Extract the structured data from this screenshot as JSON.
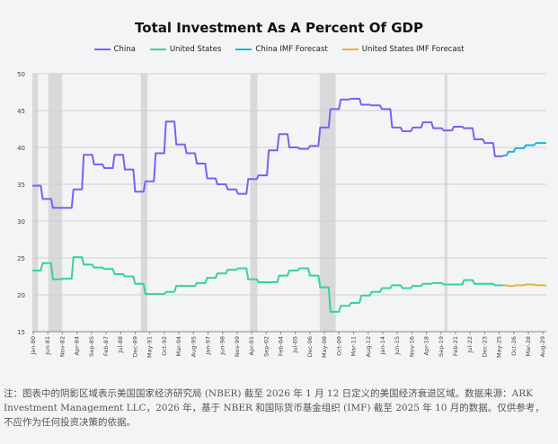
{
  "chart_data": {
    "type": "line",
    "title": "Total Investment As A Percent Of GDP",
    "ylim": [
      15,
      50
    ],
    "yticks": [
      15,
      20,
      25,
      30,
      35,
      40,
      45,
      50
    ],
    "xlim": [
      1980,
      2030
    ],
    "grid": true,
    "legend_position": "top",
    "xtick_labels": [
      "Jan-80",
      "Jun-81",
      "Nov-82",
      "Apr-84",
      "Sep-85",
      "Feb-87",
      "Jul-88",
      "Dec-89",
      "May-91",
      "Oct-92",
      "Mar-94",
      "Aug-95",
      "Jan-97",
      "Jun-98",
      "Nov-99",
      "Apr-01",
      "Sep-02",
      "Feb-04",
      "Jul-05",
      "Dec-06",
      "May-08",
      "Oct-09",
      "Mar-11",
      "Aug-12",
      "Jan-14",
      "Jun-15",
      "Nov-16",
      "Apr-18",
      "Sep-19",
      "Feb-21",
      "Jul-22",
      "Dec-23",
      "May-25",
      "Oct-26",
      "Mar-28",
      "Aug-29"
    ],
    "recessions": [
      [
        1980.0,
        1980.55
      ],
      [
        1981.55,
        1982.9
      ],
      [
        1990.55,
        1991.2
      ],
      [
        2001.2,
        2001.9
      ],
      [
        2007.95,
        2009.5
      ],
      [
        2020.1,
        2020.35
      ]
    ],
    "series": [
      {
        "name": "China",
        "color": "#7b61f0",
        "x": [
          1980,
          1981,
          1982,
          1983,
          1984,
          1985,
          1986,
          1987,
          1988,
          1989,
          1990,
          1991,
          1992,
          1993,
          1994,
          1995,
          1996,
          1997,
          1998,
          1999,
          2000,
          2001,
          2002,
          2003,
          2004,
          2005,
          2006,
          2007,
          2008,
          2009,
          2010,
          2011,
          2012,
          2013,
          2014,
          2015,
          2016,
          2017,
          2018,
          2019,
          2020,
          2021,
          2022,
          2023,
          2024,
          2025
        ],
        "values": [
          34.8,
          33,
          31.8,
          31.8,
          34.3,
          39,
          37.7,
          37.2,
          39,
          37,
          34,
          35.4,
          39.2,
          43.5,
          40.4,
          39.2,
          37.8,
          35.8,
          35,
          34.3,
          33.7,
          35.7,
          36.2,
          39.6,
          41.8,
          40,
          39.8,
          40.2,
          42.7,
          45.2,
          46.5,
          46.6,
          45.8,
          45.7,
          45.2,
          42.7,
          42.2,
          42.7,
          43.4,
          42.6,
          42.3,
          42.8,
          42.6,
          41.1,
          40.6,
          38.8
        ]
      },
      {
        "name": "United States",
        "color": "#34d399",
        "x": [
          1980,
          1981,
          1982,
          1983,
          1984,
          1985,
          1986,
          1987,
          1988,
          1989,
          1990,
          1991,
          1992,
          1993,
          1994,
          1995,
          1996,
          1997,
          1998,
          1999,
          2000,
          2001,
          2002,
          2003,
          2004,
          2005,
          2006,
          2007,
          2008,
          2009,
          2010,
          2011,
          2012,
          2013,
          2014,
          2015,
          2016,
          2017,
          2018,
          2019,
          2020,
          2021,
          2022,
          2023,
          2024,
          2025
        ],
        "values": [
          23.3,
          24.3,
          22.1,
          22.2,
          25.1,
          24.1,
          23.7,
          23.5,
          22.8,
          22.5,
          21.5,
          20.1,
          20.1,
          20.4,
          21.2,
          21.2,
          21.6,
          22.3,
          22.9,
          23.4,
          23.6,
          22.1,
          21.7,
          21.7,
          22.6,
          23.3,
          23.6,
          22.6,
          21.0,
          17.7,
          18.5,
          18.9,
          19.9,
          20.4,
          20.9,
          21.3,
          20.9,
          21.2,
          21.5,
          21.6,
          21.4,
          21.4,
          22.0,
          21.5,
          21.5,
          21.3
        ]
      },
      {
        "name": "China IMF Forecast",
        "color": "#1fb3d3",
        "x": [
          2025.8,
          2026.3,
          2027,
          2028,
          2029,
          2030
        ],
        "values": [
          38.9,
          39.4,
          39.9,
          40.3,
          40.6,
          40.6
        ]
      },
      {
        "name": "United States IMF Forecast",
        "color": "#e5b530",
        "x": [
          2025.8,
          2026.3,
          2027,
          2028,
          2029,
          2030
        ],
        "values": [
          21.3,
          21.2,
          21.3,
          21.4,
          21.3,
          21.2
        ]
      }
    ]
  },
  "note": "注：图表中的阴影区域表示美国国家经济研究局 (NBER) 截至 2026 年 1 月 12 日定义的美国经济衰退区域。数据来源：ARK Investment Management LLC，2026 年，基于 NBER 和国际货币基金组织 (IMF) 截至 2025 年 10 月的数据。仅供参考，不应作为任何投资决策的依据。"
}
